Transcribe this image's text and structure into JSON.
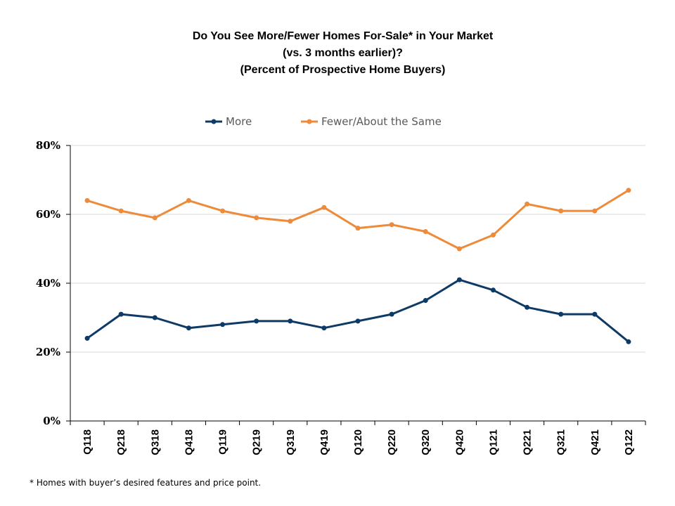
{
  "chart_data": {
    "type": "line",
    "title": [
      "Do You See More/Fewer Homes For-Sale* in Your Market",
      "(vs. 3 months earlier)?",
      "(Percent of Prospective Home Buyers)"
    ],
    "categories": [
      "Q118",
      "Q218",
      "Q318",
      "Q418",
      "Q119",
      "Q219",
      "Q319",
      "Q419",
      "Q120",
      "Q220",
      "Q320",
      "Q420",
      "Q121",
      "Q221",
      "Q321",
      "Q421",
      "Q122"
    ],
    "series": [
      {
        "name": "More",
        "color": "#0e3a66",
        "values": [
          24,
          31,
          30,
          27,
          28,
          29,
          29,
          27,
          29,
          31,
          35,
          41,
          38,
          33,
          31,
          31,
          23
        ]
      },
      {
        "name": "Fewer/About the Same",
        "color": "#ed8b3a",
        "values": [
          64,
          61,
          59,
          64,
          61,
          59,
          58,
          62,
          56,
          57,
          55,
          50,
          54,
          63,
          61,
          61,
          67
        ]
      }
    ],
    "y_ticks": [
      "0%",
      "20%",
      "40%",
      "60%",
      "80%"
    ],
    "ylim": [
      0,
      80
    ],
    "grid": true,
    "legend_position": "top-center"
  },
  "footnote": "* Homes with buyer’s desired features and price point."
}
